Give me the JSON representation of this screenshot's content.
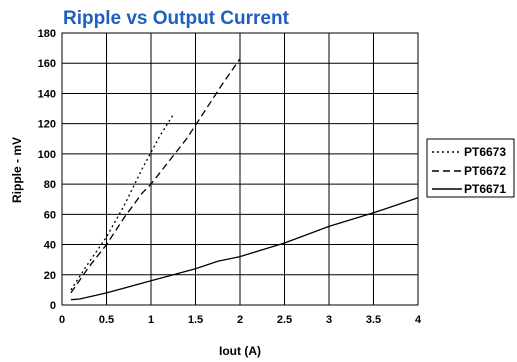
{
  "colors": {
    "title": "#1f5fbf",
    "grid": "#000000",
    "line": "#000000"
  },
  "chart_data": {
    "type": "line",
    "title": "Ripple vs Output Current",
    "xlabel": "Iout  (A)",
    "ylabel": "Ripple - mV",
    "xlim": [
      0,
      4
    ],
    "ylim": [
      0,
      180
    ],
    "xticks": [
      0,
      0.5,
      1,
      1.5,
      2,
      2.5,
      3,
      3.5,
      4
    ],
    "yticks": [
      0,
      20,
      40,
      60,
      80,
      100,
      120,
      140,
      160,
      180
    ],
    "grid": true,
    "legend_position": "right",
    "series": [
      {
        "name": "PT6673",
        "style": "dotted",
        "x": [
          0.1,
          0.3,
          0.5,
          0.7,
          0.9,
          1.1,
          1.25
        ],
        "y": [
          10,
          28,
          45,
          66,
          90,
          112,
          126
        ]
      },
      {
        "name": "PT6672",
        "style": "dashed",
        "x": [
          0.1,
          0.3,
          0.5,
          0.7,
          0.9,
          1.0,
          1.2,
          1.4,
          1.6,
          1.8,
          2.0
        ],
        "y": [
          8,
          25,
          40,
          58,
          74,
          80,
          95,
          110,
          128,
          146,
          163
        ]
      },
      {
        "name": "PT6671",
        "style": "solid",
        "x": [
          0.1,
          0.2,
          0.5,
          1.0,
          1.5,
          1.75,
          2.0,
          2.5,
          3.0,
          3.5,
          4.0
        ],
        "y": [
          3.5,
          4,
          8,
          16,
          24,
          29,
          32,
          41,
          52,
          61,
          71
        ]
      }
    ]
  }
}
